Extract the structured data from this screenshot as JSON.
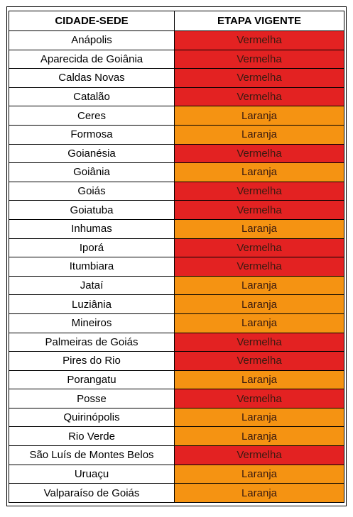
{
  "header": {
    "city_label": "CIDADE-SEDE",
    "stage_label": "ETAPA VIGENTE"
  },
  "colors": {
    "Vermelha": "#e32222",
    "Laranja": "#f59312"
  },
  "rows": [
    {
      "city": "Anápolis",
      "stage": "Vermelha"
    },
    {
      "city": "Aparecida de Goiânia",
      "stage": "Vermelha"
    },
    {
      "city": "Caldas Novas",
      "stage": "Vermelha"
    },
    {
      "city": "Catalão",
      "stage": "Vermelha"
    },
    {
      "city": "Ceres",
      "stage": "Laranja"
    },
    {
      "city": "Formosa",
      "stage": "Laranja"
    },
    {
      "city": "Goianésia",
      "stage": "Vermelha"
    },
    {
      "city": "Goiânia",
      "stage": "Laranja"
    },
    {
      "city": "Goiás",
      "stage": "Vermelha"
    },
    {
      "city": "Goiatuba",
      "stage": "Vermelha"
    },
    {
      "city": "Inhumas",
      "stage": "Laranja"
    },
    {
      "city": "Iporá",
      "stage": "Vermelha"
    },
    {
      "city": "Itumbiara",
      "stage": "Vermelha"
    },
    {
      "city": "Jataí",
      "stage": "Laranja"
    },
    {
      "city": "Luziânia",
      "stage": "Laranja"
    },
    {
      "city": "Mineiros",
      "stage": "Laranja"
    },
    {
      "city": "Palmeiras de Goiás",
      "stage": "Vermelha"
    },
    {
      "city": "Pires do Rio",
      "stage": "Vermelha"
    },
    {
      "city": "Porangatu",
      "stage": "Laranja"
    },
    {
      "city": "Posse",
      "stage": "Vermelha"
    },
    {
      "city": "Quirinópolis",
      "stage": "Laranja"
    },
    {
      "city": "Rio Verde",
      "stage": "Laranja"
    },
    {
      "city": "São Luís de Montes Belos",
      "stage": "Vermelha"
    },
    {
      "city": "Uruaçu",
      "stage": "Laranja"
    },
    {
      "city": "Valparaíso de Goiás",
      "stage": "Laranja"
    }
  ]
}
